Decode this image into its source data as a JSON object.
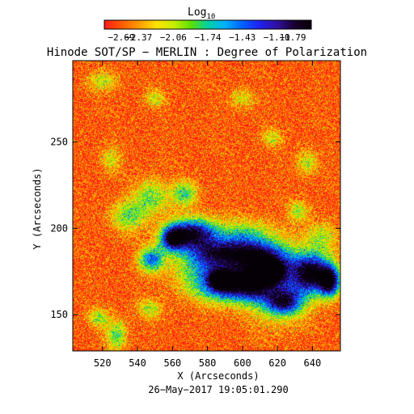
{
  "colorbar": {
    "label": "Log",
    "label_subscript": "10",
    "tick_labels": [
      "−2.69",
      "−2.37",
      "−2.06",
      "−1.74",
      "−1.43",
      "−1.11",
      "−0.79"
    ],
    "colormap": [
      "#ff1a1a",
      "#ff5a00",
      "#ff9a00",
      "#ffe000",
      "#c8f000",
      "#60e000",
      "#00d0a0",
      "#00b0ff",
      "#0060ff",
      "#2020f0",
      "#3010a0",
      "#1a0030",
      "#050005"
    ]
  },
  "chart_data": {
    "type": "heatmap",
    "title": "Hinode SOT/SP − MERLIN : Degree of Polarization",
    "xlabel": "X (Arcseconds)",
    "ylabel": "Y (Arcseconds)",
    "footer": "26−May−2017 19:05:01.290",
    "xlim": [
      503,
      656
    ],
    "ylim": [
      129,
      297
    ],
    "xticks": [
      520,
      540,
      560,
      580,
      600,
      620,
      640
    ],
    "yticks": [
      150,
      200,
      250
    ],
    "clim": [
      -2.69,
      -0.79
    ],
    "background_value": -2.55,
    "features": [
      {
        "x": 572,
        "y": 197,
        "sx": 9,
        "sy": 6,
        "v": -0.95
      },
      {
        "x": 560,
        "y": 194,
        "sx": 5,
        "sy": 5,
        "v": -1.05
      },
      {
        "x": 640,
        "y": 174,
        "sx": 8,
        "sy": 8,
        "v": -0.85
      },
      {
        "x": 650,
        "y": 169,
        "sx": 4,
        "sy": 6,
        "v": -1.0
      },
      {
        "x": 590,
        "y": 186,
        "sx": 14,
        "sy": 5,
        "v": -1.45
      },
      {
        "x": 612,
        "y": 183,
        "sx": 10,
        "sy": 6,
        "v": -1.5
      },
      {
        "x": 583,
        "y": 176,
        "sx": 14,
        "sy": 9,
        "v": -1.55
      },
      {
        "x": 605,
        "y": 169,
        "sx": 9,
        "sy": 7,
        "v": -1.25
      },
      {
        "x": 588,
        "y": 170,
        "sx": 5,
        "sy": 4,
        "v": -1.1
      },
      {
        "x": 617,
        "y": 175,
        "sx": 5,
        "sy": 4,
        "v": -1.2
      },
      {
        "x": 624,
        "y": 157,
        "sx": 7,
        "sy": 5,
        "v": -1.45
      },
      {
        "x": 548,
        "y": 182,
        "sx": 5,
        "sy": 5,
        "v": -1.45
      },
      {
        "x": 535,
        "y": 207,
        "sx": 7,
        "sy": 6,
        "v": -1.9
      },
      {
        "x": 548,
        "y": 218,
        "sx": 7,
        "sy": 7,
        "v": -1.9
      },
      {
        "x": 567,
        "y": 220,
        "sx": 5,
        "sy": 5,
        "v": -1.8
      },
      {
        "x": 600,
        "y": 196,
        "sx": 12,
        "sy": 6,
        "v": -1.85
      },
      {
        "x": 590,
        "y": 164,
        "sx": 12,
        "sy": 6,
        "v": -1.85
      },
      {
        "x": 620,
        "y": 168,
        "sx": 12,
        "sy": 14,
        "v": -1.65
      },
      {
        "x": 645,
        "y": 195,
        "sx": 6,
        "sy": 6,
        "v": -2.05
      },
      {
        "x": 528,
        "y": 138,
        "sx": 4,
        "sy": 6,
        "v": -1.85
      },
      {
        "x": 518,
        "y": 148,
        "sx": 4,
        "sy": 4,
        "v": -2.0
      },
      {
        "x": 547,
        "y": 153,
        "sx": 5,
        "sy": 4,
        "v": -2.05
      },
      {
        "x": 637,
        "y": 238,
        "sx": 4,
        "sy": 5,
        "v": -2.05
      },
      {
        "x": 617,
        "y": 252,
        "sx": 4,
        "sy": 4,
        "v": -2.15
      },
      {
        "x": 520,
        "y": 285,
        "sx": 6,
        "sy": 4,
        "v": -2.1
      },
      {
        "x": 550,
        "y": 275,
        "sx": 4,
        "sy": 4,
        "v": -2.15
      },
      {
        "x": 600,
        "y": 275,
        "sx": 5,
        "sy": 4,
        "v": -2.15
      },
      {
        "x": 525,
        "y": 240,
        "sx": 4,
        "sy": 5,
        "v": -2.15
      },
      {
        "x": 632,
        "y": 210,
        "sx": 4,
        "sy": 4,
        "v": -2.0
      }
    ]
  }
}
